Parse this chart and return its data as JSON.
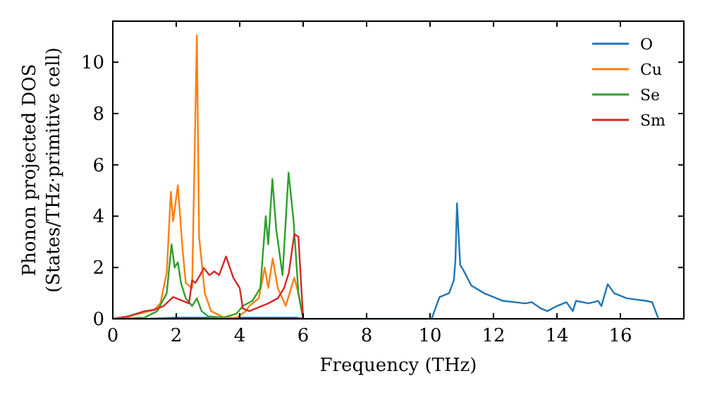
{
  "chart_data": {
    "type": "line",
    "xlabel": "Frequency (THz)",
    "ylabel": "Phonon projected DOS\n(States/THz·primitive cell)",
    "xlim": [
      0,
      18
    ],
    "ylim": [
      0,
      11.6
    ],
    "xticks": [
      0,
      2,
      4,
      6,
      8,
      10,
      12,
      14,
      16
    ],
    "yticks": [
      0,
      2,
      4,
      6,
      8,
      10
    ],
    "grid": false,
    "legend": "top right",
    "marker": "none",
    "line_style": "solid",
    "series": [
      {
        "name": "O",
        "color": "#1f77b4",
        "x": [
          0,
          1,
          2,
          3,
          4,
          5,
          5.8,
          6,
          10.05,
          10.3,
          10.6,
          10.75,
          10.8,
          10.85,
          10.95,
          11.05,
          11.3,
          11.7,
          12,
          12.3,
          13,
          13.2,
          13.5,
          13.7,
          14,
          14.3,
          14.5,
          14.6,
          15,
          15.3,
          15.4,
          15.6,
          15.8,
          16.2,
          16.8,
          17,
          17.2
        ],
        "values": [
          0,
          0,
          0.05,
          0.05,
          0.05,
          0.05,
          0.05,
          0,
          0,
          0.85,
          1,
          1.5,
          2.3,
          4.5,
          2.1,
          1.9,
          1.3,
          1,
          0.85,
          0.7,
          0.6,
          0.65,
          0.4,
          0.3,
          0.5,
          0.65,
          0.3,
          0.7,
          0.6,
          0.7,
          0.5,
          1.35,
          1,
          0.8,
          0.7,
          0.65,
          0
        ]
      },
      {
        "name": "Cu",
        "color": "#ff7f0e",
        "x": [
          0,
          0.5,
          1,
          1.3,
          1.5,
          1.7,
          1.83,
          1.9,
          2.05,
          2.2,
          2.3,
          2.5,
          2.65,
          2.72,
          2.9,
          3.1,
          3.5,
          3.9,
          4.2,
          4.3,
          4.6,
          4.79,
          4.9,
          5.04,
          5.2,
          5.45,
          5.72,
          5.85,
          6
        ],
        "values": [
          0,
          0.1,
          0.25,
          0.35,
          0.6,
          1.8,
          4.95,
          3.8,
          5.2,
          2.7,
          1.4,
          1.2,
          11.05,
          3.2,
          1,
          0.3,
          0.05,
          0.05,
          0.3,
          0.5,
          0.8,
          2,
          1.2,
          2.35,
          1.2,
          0.5,
          1.6,
          1,
          0
        ]
      },
      {
        "name": "Se",
        "color": "#2ca02c",
        "x": [
          0,
          1,
          1.4,
          1.7,
          1.85,
          1.95,
          2.05,
          2.15,
          2.3,
          2.5,
          2.65,
          2.8,
          3,
          3.5,
          3.9,
          4.1,
          4.4,
          4.65,
          4.82,
          4.9,
          5.03,
          5.15,
          5.35,
          5.54,
          5.7,
          5.85,
          6
        ],
        "values": [
          0,
          0.05,
          0.3,
          1,
          2.9,
          2,
          2.2,
          1.4,
          0.8,
          0.5,
          0.8,
          0.3,
          0.1,
          0.05,
          0.2,
          0.5,
          0.7,
          1.2,
          4,
          2.9,
          5.45,
          3.5,
          1.7,
          5.7,
          3.8,
          1,
          0
        ]
      },
      {
        "name": "Sm",
        "color": "#d62728",
        "x": [
          0,
          0.5,
          1,
          1.3,
          1.6,
          1.9,
          2.1,
          2.4,
          2.5,
          2.6,
          2.75,
          2.87,
          3.05,
          3.2,
          3.35,
          3.57,
          3.8,
          4,
          4.1,
          4.3,
          4.6,
          4.9,
          5.2,
          5.4,
          5.55,
          5.72,
          5.85,
          6
        ],
        "values": [
          0,
          0.1,
          0.3,
          0.35,
          0.5,
          0.85,
          0.75,
          0.6,
          1.5,
          1.4,
          1.7,
          1.98,
          1.7,
          1.85,
          1.7,
          2.43,
          1.6,
          1.2,
          0.4,
          0.3,
          0.45,
          0.6,
          0.8,
          1.2,
          1.8,
          3.3,
          3.2,
          0
        ]
      }
    ]
  }
}
